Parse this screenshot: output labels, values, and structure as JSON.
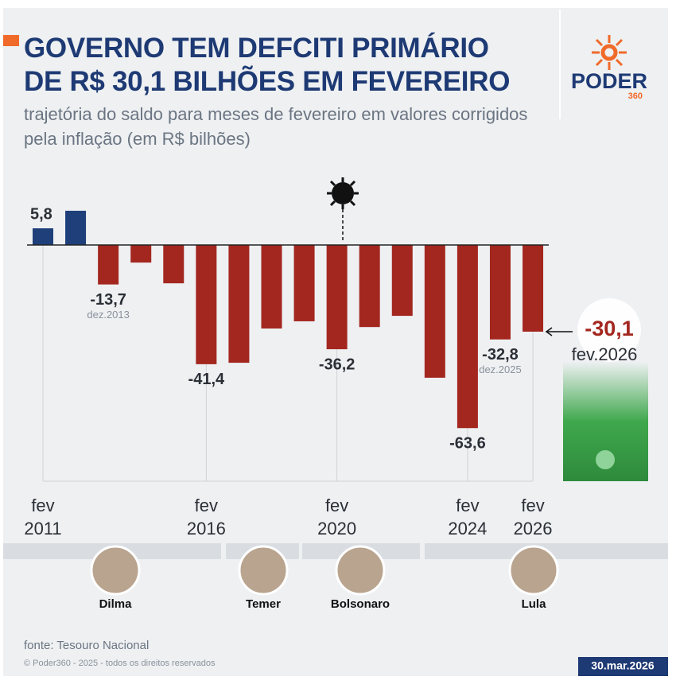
{
  "chart_data": {
    "type": "bar",
    "title": "GOVERNO TEM DEFCITI PRIMÁRIO\nDE R$ 30,1 BILHÕES EM FEVEREIRO",
    "subtitle": "trajetória do saldo para meses de fevereiro em valores corrigidos pela inflação (em R$ bilhões)",
    "categories": [
      "fev\n2011",
      null,
      null,
      null,
      null,
      "fev\n2016",
      null,
      null,
      null,
      "fev\n2020",
      null,
      null,
      null,
      "fev\n2024",
      null,
      "fev\n2026"
    ],
    "values": [
      5.8,
      11.9,
      -13.7,
      -6.1,
      -13.3,
      -41.4,
      -40.9,
      -29.0,
      -26.5,
      -36.2,
      -28.5,
      -24.6,
      -46.1,
      -63.6,
      -32.8,
      -30.1
    ],
    "value_labels": [
      "5,8",
      null,
      "-13,7",
      null,
      null,
      "-41,4",
      null,
      null,
      null,
      "-36,2",
      null,
      null,
      null,
      "-63,6",
      "-32,8",
      "-30,1"
    ],
    "value_notes": [
      null,
      null,
      "dez.2013",
      null,
      null,
      null,
      null,
      null,
      null,
      null,
      null,
      null,
      null,
      null,
      "dez.2025",
      "fev.2026"
    ],
    "color": "#a3271f",
    "positive_color": "#1e3f7a",
    "ylim": [
      -70,
      12
    ],
    "presidents": [
      "Dilma",
      "Temer",
      "Bolsonaro",
      "Lula"
    ]
  },
  "logo": {
    "name": "PODER",
    "sub": "360"
  },
  "footer": {
    "source": "fonte: Tesouro Nacional",
    "copyright": "© Poder360 - 2025 - todos os direitos reservados",
    "date": "30.mar.2026"
  }
}
